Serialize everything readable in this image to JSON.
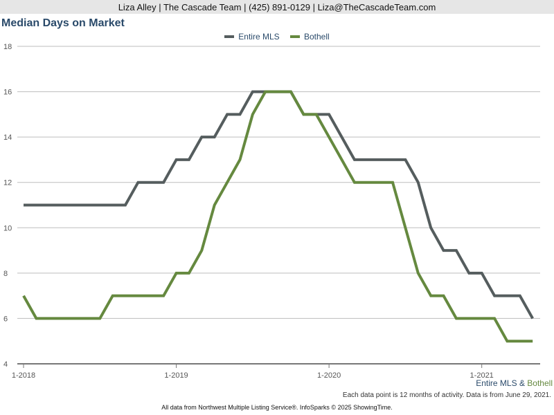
{
  "header": {
    "contact": "Liza Alley | The Cascade Team | (425) 891-0129 | Liza@TheCascadeTeam.com"
  },
  "chart_data": {
    "type": "line",
    "title": "Median Days on Market",
    "x": [
      "2018-01",
      "2018-02",
      "2018-03",
      "2018-04",
      "2018-05",
      "2018-06",
      "2018-07",
      "2018-08",
      "2018-09",
      "2018-10",
      "2018-11",
      "2018-12",
      "2019-01",
      "2019-02",
      "2019-03",
      "2019-04",
      "2019-05",
      "2019-06",
      "2019-07",
      "2019-08",
      "2019-09",
      "2019-10",
      "2019-11",
      "2019-12",
      "2020-01",
      "2020-02",
      "2020-03",
      "2020-04",
      "2020-05",
      "2020-06",
      "2020-07",
      "2020-08",
      "2020-09",
      "2020-10",
      "2020-11",
      "2020-12",
      "2021-01",
      "2021-02",
      "2021-03",
      "2021-04",
      "2021-05"
    ],
    "x_tick_labels": [
      "1-2018",
      "1-2019",
      "1-2020",
      "1-2021"
    ],
    "x_tick_indices": [
      0,
      12,
      24,
      36
    ],
    "series": [
      {
        "name": "Entire MLS",
        "color": "#555d5e",
        "values": [
          11,
          11,
          11,
          11,
          11,
          11,
          11,
          11,
          11,
          12,
          12,
          12,
          13,
          13,
          14,
          14,
          15,
          15,
          16,
          16,
          16,
          16,
          15,
          15,
          15,
          14,
          13,
          13,
          13,
          13,
          13,
          12,
          10,
          9,
          9,
          8,
          8,
          7,
          7,
          7,
          6
        ]
      },
      {
        "name": "Bothell",
        "color": "#65893f",
        "values": [
          7,
          6,
          6,
          6,
          6,
          6,
          6,
          7,
          7,
          7,
          7,
          7,
          8,
          8,
          9,
          11,
          12,
          13,
          15,
          16,
          16,
          16,
          15,
          15,
          14,
          13,
          12,
          12,
          12,
          12,
          10,
          8,
          7,
          7,
          6,
          6,
          6,
          6,
          5,
          5,
          5
        ]
      }
    ],
    "ylim": [
      4,
      18
    ],
    "y_ticks": [
      4,
      6,
      8,
      10,
      12,
      14,
      16,
      18
    ],
    "grid": true,
    "legend_position": "top-center",
    "series_footer": {
      "first": "Entire MLS",
      "separator": "&",
      "second": "Bothell"
    },
    "footnote": "Each data point is 12 months of activity. Data is from June 29, 2021."
  },
  "footer": {
    "source": "All data from Northwest Multiple Listing Service®. InfoSparks © 2025 ShowingTime."
  }
}
